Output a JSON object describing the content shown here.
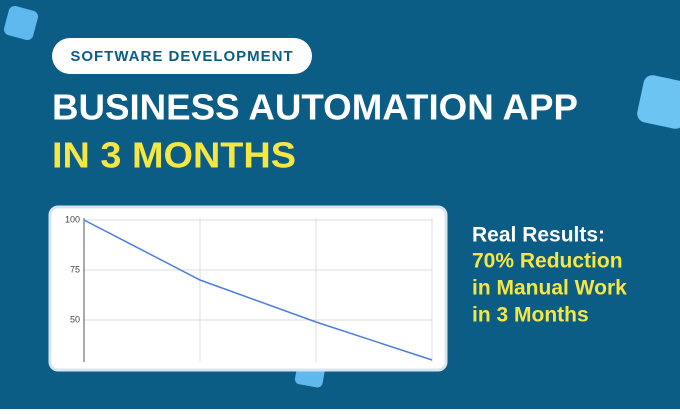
{
  "header": {
    "pill": "SOFTWARE DEVELOPMENT",
    "title": "BUSINESS AUTOMATION APP",
    "subtitle": "IN 3 MONTHS"
  },
  "results": {
    "heading": "Real Results:",
    "lines": [
      "70% Reduction",
      "in Manual Work",
      "in 3 Months"
    ]
  },
  "chart_data": {
    "type": "line",
    "categories": [
      null,
      null,
      null,
      null
    ],
    "values": [
      100,
      70,
      49,
      30
    ],
    "color": "#4a7fe0",
    "ylim": [
      29,
      101
    ],
    "yticks": [
      100,
      75,
      50
    ],
    "grid": true
  }
}
